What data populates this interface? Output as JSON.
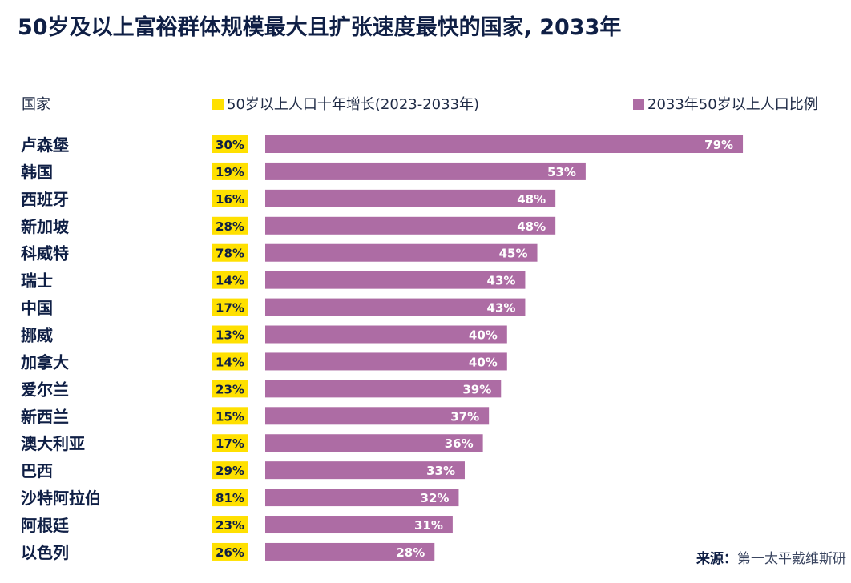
{
  "title": "50岁及以上富裕群体规模最大且扩张速度最快的国家, 2033年",
  "chart_data": {
    "type": "bar",
    "title": "50岁及以上富裕群体规模最大且扩张速度最快的国家, 2033年",
    "category_header": "国家",
    "categories": [
      "卢森堡",
      "韩国",
      "西班牙",
      "新加坡",
      "科威特",
      "瑞士",
      "中国",
      "挪威",
      "加拿大",
      "爱尔兰",
      "新西兰",
      "澳大利亚",
      "巴西",
      "沙特阿拉伯",
      "阿根廷",
      "以色列"
    ],
    "series": [
      {
        "name": "50岁以上人口十年增长(2023-2033年)",
        "color": "#ffe000",
        "values": [
          30,
          19,
          16,
          28,
          78,
          14,
          17,
          13,
          14,
          23,
          15,
          17,
          29,
          81,
          23,
          26
        ]
      },
      {
        "name": "2033年50岁以上人口比例",
        "color": "#ad6ca4",
        "values": [
          79,
          53,
          48,
          48,
          45,
          43,
          43,
          40,
          40,
          39,
          37,
          36,
          33,
          32,
          31,
          28
        ]
      }
    ],
    "unit": "%",
    "legend": "top",
    "grid": false
  },
  "source": {
    "label": "来源：",
    "text": "第一太平戴维斯研"
  }
}
